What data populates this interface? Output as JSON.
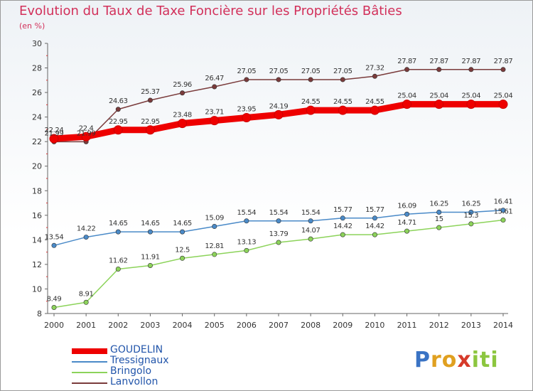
{
  "title": "Evolution du Taux de Taxe Foncière sur les Propriétés Bâties",
  "unit_label": "(en %)",
  "logo": {
    "p": "P",
    "ro": "ro",
    "x": "x",
    "iti": "iti"
  },
  "chart_data": {
    "type": "line",
    "x": [
      "2000",
      "2001",
      "2002",
      "2003",
      "2004",
      "2005",
      "2006",
      "2007",
      "2008",
      "2009",
      "2010",
      "2011",
      "2012",
      "2013",
      "2014"
    ],
    "ylim": [
      8,
      30
    ],
    "yticks": [
      8,
      10,
      12,
      14,
      16,
      18,
      20,
      22,
      24,
      26,
      28,
      30
    ],
    "grid": false,
    "legend_position": "bottom-left",
    "series": [
      {
        "name": "GOUDELIN",
        "color": "#ee0000",
        "values": [
          22.24,
          22.4,
          22.95,
          22.95,
          23.48,
          23.71,
          23.95,
          24.19,
          24.55,
          24.55,
          24.55,
          25.04,
          25.04,
          25.04,
          25.04
        ],
        "labels": [
          "22.24",
          "22.4",
          "22.95",
          "22.95",
          "23.48",
          "23.71",
          "23.95",
          "24.19",
          "24.55",
          "24.55",
          "24.55",
          "25.04",
          "25.04",
          "25.04",
          "25.04"
        ]
      },
      {
        "name": "Tressignaux",
        "color": "#4a8ac8",
        "values": [
          13.54,
          14.22,
          14.65,
          14.65,
          14.65,
          15.09,
          15.54,
          15.54,
          15.54,
          15.77,
          15.77,
          16.09,
          16.25,
          16.25,
          16.41
        ],
        "labels": [
          "13.54",
          "14.22",
          "14.65",
          "14.65",
          "14.65",
          "15.09",
          "15.54",
          "15.54",
          "15.54",
          "15.77",
          "15.77",
          "16.09",
          "16.25",
          "16.25",
          "16.41"
        ]
      },
      {
        "name": "Bringolo",
        "color": "#8cd35a",
        "values": [
          8.49,
          8.91,
          11.62,
          11.91,
          12.5,
          12.81,
          13.13,
          13.79,
          14.07,
          14.42,
          14.42,
          14.71,
          15,
          15.3,
          15.61
        ],
        "labels": [
          "8.49",
          "8.91",
          "11.62",
          "11.91",
          "12.5",
          "12.81",
          "13.13",
          "13.79",
          "14.07",
          "14.42",
          "14.42",
          "14.71",
          "15",
          "15.3",
          "15.61"
        ]
      },
      {
        "name": "Lanvollon",
        "color": "#7a3b3b",
        "values": [
          21.99,
          21.99,
          24.63,
          25.37,
          25.96,
          26.47,
          27.05,
          27.05,
          27.05,
          27.05,
          27.32,
          27.87,
          27.87,
          27.87,
          27.87
        ],
        "labels": [
          "21.99",
          "21.99",
          "24.63",
          "25.37",
          "25.96",
          "26.47",
          "27.05",
          "27.05",
          "27.05",
          "27.05",
          "27.32",
          "27.87",
          "27.87",
          "27.87",
          "27.87"
        ]
      }
    ]
  }
}
